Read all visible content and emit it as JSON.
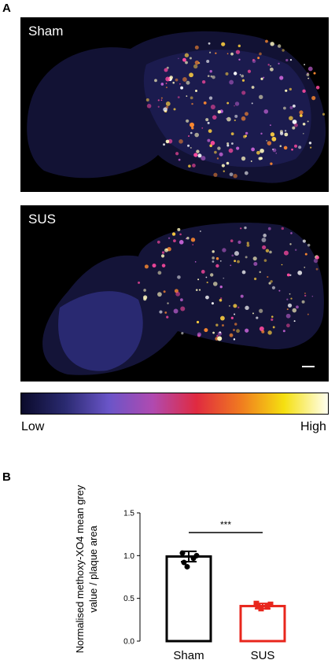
{
  "figure": {
    "panel_a_letter": "A",
    "panel_b_letter": "B",
    "panels": [
      {
        "label": "Sham"
      },
      {
        "label": "SUS"
      }
    ],
    "colorbar": {
      "low_label": "Low",
      "high_label": "High",
      "colors": [
        "#0a0a2a",
        "#2a2a70",
        "#6a55c8",
        "#b04ab0",
        "#e02a40",
        "#f07a20",
        "#f5e010",
        "#fffff0"
      ]
    }
  },
  "chart_data": {
    "type": "bar",
    "categories": [
      "Sham",
      "SUS"
    ],
    "values": [
      0.99,
      0.41
    ],
    "errors": [
      0.06,
      0.03
    ],
    "points": [
      [
        1.03,
        0.97,
        0.92,
        0.87,
        1.0
      ],
      [
        0.44,
        0.4,
        0.41,
        0.38,
        0.43
      ]
    ],
    "colors": [
      "#000000",
      "#e8261c"
    ],
    "ylabel": "Normalised methoxy-XO4 mean grey value / plaque area",
    "ylim": [
      0,
      1.5
    ],
    "yticks": [
      "0.0",
      "0.5",
      "1.0",
      "1.5"
    ],
    "significance": "***"
  }
}
